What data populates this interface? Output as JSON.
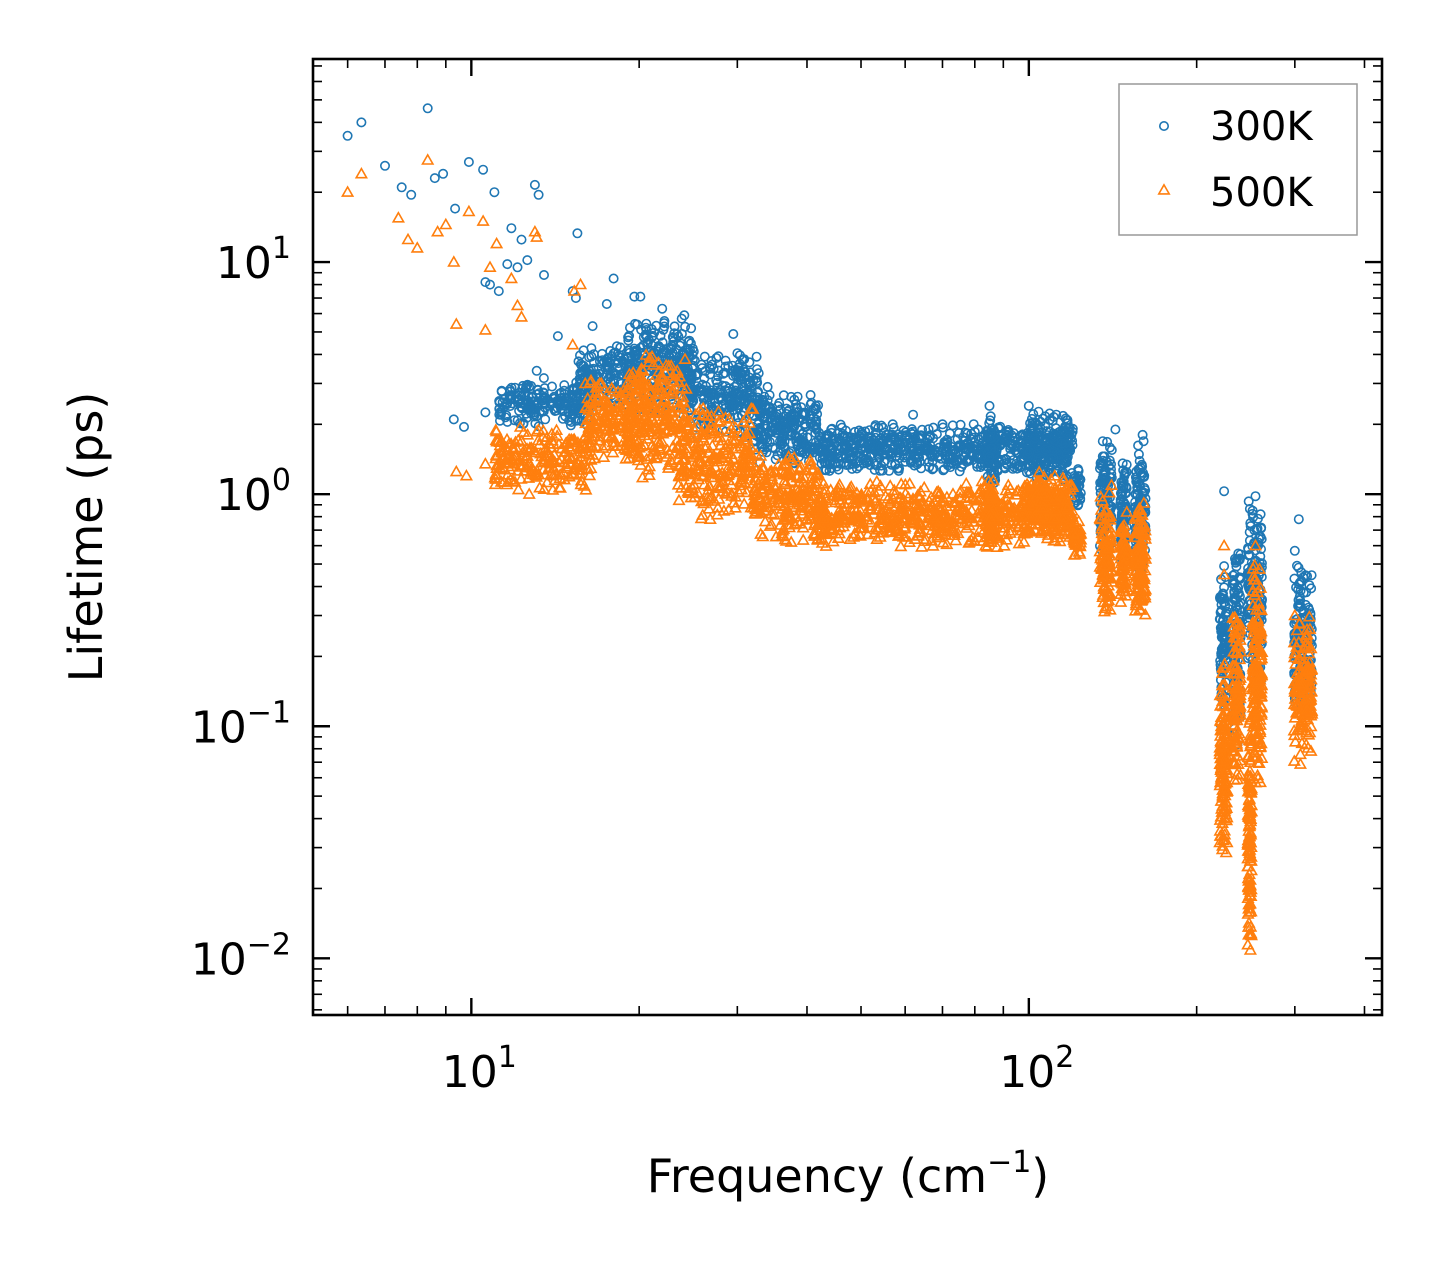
{
  "chart_data": {
    "type": "scatter",
    "title": "",
    "xlabel": "Frequency (cm",
    "xlabel_sup": "−1",
    "xlabel_end": ")",
    "ylabel": "Lifetime (ps)",
    "xscale": "log",
    "yscale": "log",
    "xlim": [
      5.2,
      430
    ],
    "ylim": [
      0.0057,
      75
    ],
    "legend_position": "top-right",
    "x_ticks": [
      {
        "base": "10",
        "exp": "1",
        "value": 10
      },
      {
        "base": "10",
        "exp": "2",
        "value": 100
      }
    ],
    "y_ticks": [
      {
        "base": "10",
        "exp": "−2",
        "value": 0.01
      },
      {
        "base": "10",
        "exp": "−1",
        "value": 0.1
      },
      {
        "base": "10",
        "exp": "0",
        "value": 1
      },
      {
        "base": "10",
        "exp": "1",
        "value": 10
      }
    ],
    "series": [
      {
        "name": "300K",
        "marker": "circle",
        "color": "#1f77b4",
        "points": [
          [
            6.0,
            35
          ],
          [
            6.35,
            40
          ],
          [
            7.0,
            26
          ],
          [
            7.5,
            21
          ],
          [
            7.8,
            19.5
          ],
          [
            8.35,
            46
          ],
          [
            8.6,
            23
          ],
          [
            8.9,
            24
          ],
          [
            9.35,
            17
          ],
          [
            9.9,
            27
          ],
          [
            10.5,
            25
          ],
          [
            10.6,
            8.2
          ],
          [
            10.8,
            8.0
          ],
          [
            11.0,
            20
          ],
          [
            11.2,
            7.5
          ],
          [
            11.6,
            9.8
          ],
          [
            11.8,
            14
          ],
          [
            12.1,
            9.5
          ],
          [
            12.3,
            12.5
          ],
          [
            12.6,
            10.2
          ],
          [
            13.0,
            21.5
          ],
          [
            13.2,
            19.5
          ],
          [
            13.5,
            8.8
          ],
          [
            14.3,
            4.8
          ],
          [
            15.2,
            7.5
          ],
          [
            15.5,
            13.3
          ],
          [
            15.4,
            7.0
          ],
          [
            16.5,
            5.3
          ],
          [
            17.5,
            6.6
          ],
          [
            18.0,
            8.5
          ],
          [
            19.6,
            7.1
          ],
          [
            20.1,
            7.1
          ],
          [
            22.0,
            6.3
          ],
          [
            24.1,
            5.9
          ],
          [
            29.5,
            4.9
          ],
          [
            28.3,
            3.3
          ],
          [
            34.0,
            2.9
          ],
          [
            38.0,
            2.1
          ],
          [
            44.2,
            1.9
          ],
          [
            46.5,
            1.75
          ],
          [
            53.0,
            1.95
          ],
          [
            57.0,
            2.0
          ],
          [
            62.0,
            2.2
          ],
          [
            70.0,
            2.0
          ],
          [
            85.0,
            2.4
          ],
          [
            100.0,
            2.4
          ],
          [
            112.0,
            2.2
          ],
          [
            143.0,
            1.9
          ],
          [
            160.0,
            1.8
          ],
          [
            224.0,
            1.03
          ],
          [
            255.0,
            0.98
          ],
          [
            252.0,
            0.85
          ],
          [
            300.0,
            0.57
          ],
          [
            305.0,
            0.78
          ],
          [
            9.3,
            2.1
          ],
          [
            9.7,
            1.95
          ],
          [
            10.6,
            2.25
          ],
          [
            11.3,
            2.2
          ],
          [
            12.5,
            2.45
          ],
          [
            13.1,
            3.4
          ],
          [
            224.0,
            0.49
          ],
          [
            224.0,
            0.2
          ]
        ],
        "clusters": [
          {
            "x": [
              11.2,
              16.5
            ],
            "y": [
              1.9,
              3.2
            ],
            "n": 220
          },
          {
            "x": [
              15.5,
              19.5
            ],
            "y": [
              2.3,
              4.6
            ],
            "n": 150
          },
          {
            "x": [
              19.0,
              25.0
            ],
            "y": [
              2.2,
              6.0
            ],
            "n": 260
          },
          {
            "x": [
              24.0,
              33.0
            ],
            "y": [
              1.7,
              4.2
            ],
            "n": 260
          },
          {
            "x": [
              32.0,
              42.0
            ],
            "y": [
              1.3,
              2.8
            ],
            "n": 240
          },
          {
            "x": [
              42.0,
              120.0
            ],
            "y": [
              1.2,
              2.05
            ],
            "n": 700
          },
          {
            "x": [
              84.0,
              87.0
            ],
            "y": [
              1.0,
              2.35
            ],
            "n": 60
          },
          {
            "x": [
              99.0,
              118.0
            ],
            "y": [
              1.1,
              2.3
            ],
            "n": 160
          },
          {
            "x": [
              120.0,
              124.0
            ],
            "y": [
              0.85,
              1.3
            ],
            "n": 40
          },
          {
            "x": [
              134.0,
              141.0
            ],
            "y": [
              0.5,
              1.9
            ],
            "n": 110
          },
          {
            "x": [
              146.0,
              150.0
            ],
            "y": [
              0.45,
              1.5
            ],
            "n": 80
          },
          {
            "x": [
              155.0,
              162.0
            ],
            "y": [
              0.4,
              1.75
            ],
            "n": 120
          },
          {
            "x": [
              220.0,
              227.0
            ],
            "y": [
              0.09,
              0.5
            ],
            "n": 90
          },
          {
            "x": [
              232.0,
              240.0
            ],
            "y": [
              0.08,
              0.65
            ],
            "n": 120
          },
          {
            "x": [
              247.0,
              262.0
            ],
            "y": [
              0.15,
              0.95
            ],
            "n": 160
          },
          {
            "x": [
              299.0,
              322.0
            ],
            "y": [
              0.1,
              0.55
            ],
            "n": 160
          }
        ]
      },
      {
        "name": "500K",
        "marker": "triangle",
        "color": "#ff7f0e",
        "points": [
          [
            6.0,
            20
          ],
          [
            6.35,
            24
          ],
          [
            7.4,
            15.5
          ],
          [
            7.7,
            12.5
          ],
          [
            8.0,
            11.5
          ],
          [
            8.35,
            27.5
          ],
          [
            8.7,
            13.5
          ],
          [
            9.0,
            14.5
          ],
          [
            9.3,
            10
          ],
          [
            9.4,
            5.4
          ],
          [
            9.9,
            16.5
          ],
          [
            10.5,
            15
          ],
          [
            10.6,
            5.1
          ],
          [
            10.8,
            9.5
          ],
          [
            11.1,
            12
          ],
          [
            11.8,
            8.5
          ],
          [
            12.1,
            6.5
          ],
          [
            12.3,
            5.8
          ],
          [
            13.0,
            13.5
          ],
          [
            13.1,
            12.8
          ],
          [
            15.3,
            7.5
          ],
          [
            15.7,
            8.0
          ],
          [
            15.2,
            4.4
          ],
          [
            9.4,
            1.25
          ],
          [
            9.8,
            1.2
          ],
          [
            10.6,
            1.35
          ],
          [
            11.4,
            1.3
          ],
          [
            12.7,
            1.0
          ],
          [
            13.5,
            1.05
          ],
          [
            14.0,
            1.2
          ],
          [
            224.0,
            0.6
          ],
          [
            224.0,
            0.45
          ],
          [
            224.0,
            0.15
          ],
          [
            255.0,
            0.6
          ],
          [
            300.0,
            0.3
          ],
          [
            305.0,
            0.23
          ],
          [
            225.0,
            0.085
          ]
        ],
        "clusters": [
          {
            "x": [
              11.0,
              16.5
            ],
            "y": [
              1.0,
              2.0
            ],
            "n": 220
          },
          {
            "x": [
              16.0,
              19.5
            ],
            "y": [
              1.3,
              3.3
            ],
            "n": 150
          },
          {
            "x": [
              19.0,
              24.5
            ],
            "y": [
              1.1,
              4.3
            ],
            "n": 260
          },
          {
            "x": [
              23.5,
              32.0
            ],
            "y": [
              0.75,
              2.6
            ],
            "n": 260
          },
          {
            "x": [
              32.0,
              42.0
            ],
            "y": [
              0.6,
              1.6
            ],
            "n": 240
          },
          {
            "x": [
              42.0,
              120.0
            ],
            "y": [
              0.58,
              1.15
            ],
            "n": 700
          },
          {
            "x": [
              84.0,
              87.0
            ],
            "y": [
              0.55,
              1.25
            ],
            "n": 60
          },
          {
            "x": [
              99.0,
              118.0
            ],
            "y": [
              0.65,
              1.3
            ],
            "n": 160
          },
          {
            "x": [
              120.0,
              124.0
            ],
            "y": [
              0.52,
              0.8
            ],
            "n": 40
          },
          {
            "x": [
              134.0,
              141.0
            ],
            "y": [
              0.29,
              1.1
            ],
            "n": 110
          },
          {
            "x": [
              146.0,
              150.0
            ],
            "y": [
              0.3,
              0.85
            ],
            "n": 80
          },
          {
            "x": [
              155.0,
              162.0
            ],
            "y": [
              0.28,
              1.0
            ],
            "n": 120
          },
          {
            "x": [
              220.0,
              227.0
            ],
            "y": [
              0.025,
              0.2
            ],
            "n": 140
          },
          {
            "x": [
              232.0,
              240.0
            ],
            "y": [
              0.05,
              0.35
            ],
            "n": 120
          },
          {
            "x": [
              247.0,
              251.0
            ],
            "y": [
              0.009,
              0.15
            ],
            "n": 120
          },
          {
            "x": [
              252.0,
              262.0
            ],
            "y": [
              0.05,
              0.55
            ],
            "n": 160
          },
          {
            "x": [
              299.0,
              322.0
            ],
            "y": [
              0.065,
              0.3
            ],
            "n": 160
          }
        ]
      }
    ]
  }
}
